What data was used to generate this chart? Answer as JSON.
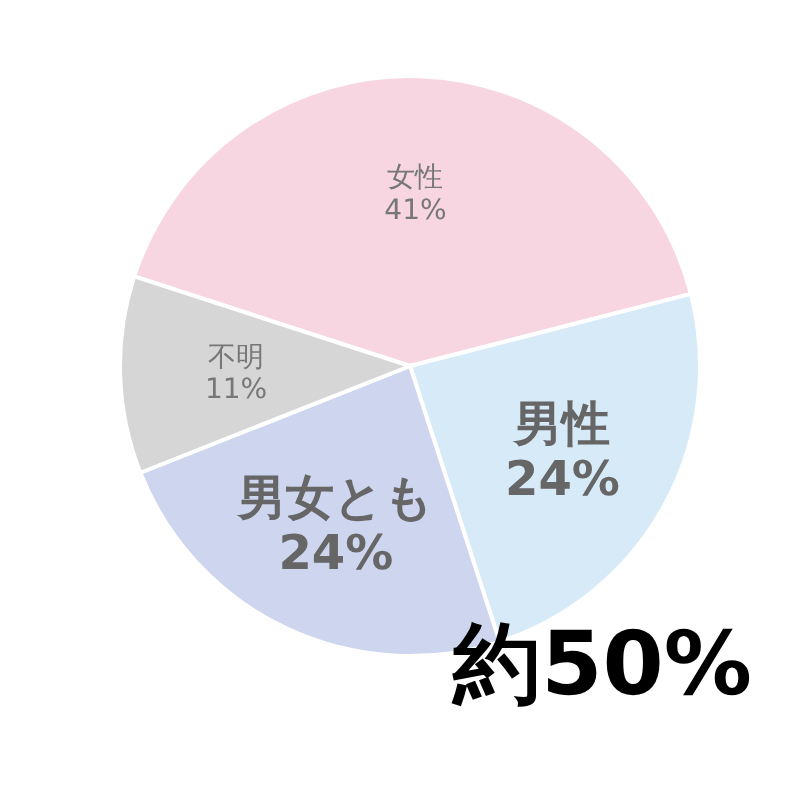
{
  "chart_data": {
    "type": "pie",
    "categories": [
      "女性",
      "男性",
      "男女とも",
      "不明"
    ],
    "values": [
      41,
      24,
      24,
      11
    ],
    "value_labels": [
      "41%",
      "24%",
      "24%",
      "11%"
    ],
    "colors": [
      "#f7d6e2",
      "#d6eaf8",
      "#cdd6ee",
      "#d6d6d6"
    ],
    "annotations": [
      "約50%"
    ]
  }
}
